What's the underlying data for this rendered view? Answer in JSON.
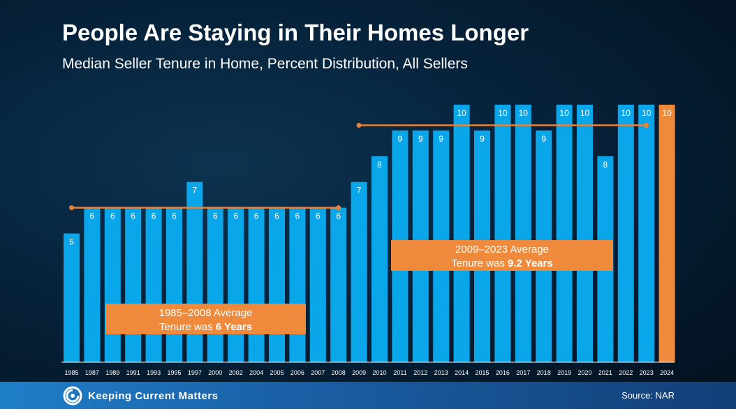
{
  "header": {
    "title": "People Are Staying in Their Homes Longer",
    "subtitle": "Median Seller Tenure in Home, Percent Distribution, All Sellers"
  },
  "footer": {
    "logo_text": "Keeping Current Matters",
    "source": "Source: NAR"
  },
  "colors": {
    "bar": "#0aa6ea",
    "highlight": "#ef8a3c",
    "callout": "#ef8a3c",
    "average_line": "#e8833a"
  },
  "chart_data": {
    "type": "bar",
    "categories": [
      "1985",
      "1987",
      "1989",
      "1991",
      "1993",
      "1995",
      "1997",
      "2000",
      "2002",
      "2004",
      "2005",
      "2006",
      "2007",
      "2008",
      "2009",
      "2010",
      "2011",
      "2012",
      "2013",
      "2014",
      "2015",
      "2016",
      "2017",
      "2018",
      "2019",
      "2020",
      "2021",
      "2022",
      "2023",
      "2024"
    ],
    "values": [
      5,
      6,
      6,
      6,
      6,
      6,
      7,
      6,
      6,
      6,
      6,
      6,
      6,
      6,
      7,
      8,
      9,
      9,
      9,
      10,
      9,
      10,
      10,
      9,
      10,
      10,
      8,
      10,
      10,
      10
    ],
    "highlight_category": "2024",
    "ylim": [
      0,
      10
    ],
    "annotations": [
      {
        "from": "1985",
        "to": "2008",
        "value": 6,
        "line1": "1985–2008 Average",
        "line2_prefix": "Tenure was ",
        "line2_bold": "6 Years"
      },
      {
        "from": "2009",
        "to": "2023",
        "value": 9.2,
        "line1": "2009–2023 Average",
        "line2_prefix": "Tenure was ",
        "line2_bold": "9.2 Years"
      }
    ]
  }
}
